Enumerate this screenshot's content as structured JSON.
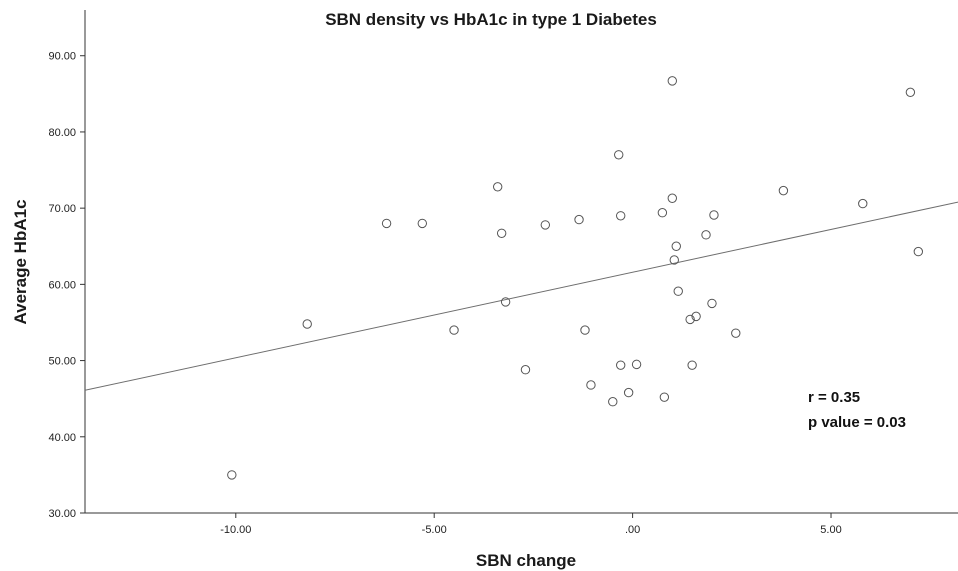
{
  "chart_data": {
    "type": "scatter",
    "title": "SBN density vs HbA1c in type 1 Diabetes",
    "xlabel": "SBN change",
    "ylabel": "Average HbA1c",
    "xlim": [
      -13.8,
      8.2
    ],
    "ylim": [
      30,
      96
    ],
    "x_ticks": [
      "-10.00",
      "-5.00",
      ".00",
      "5.00"
    ],
    "x_tick_values": [
      -10,
      -5,
      0,
      5
    ],
    "y_ticks": [
      "30.00",
      "40.00",
      "50.00",
      "60.00",
      "70.00",
      "80.00",
      "90.00"
    ],
    "y_tick_values": [
      30,
      40,
      50,
      60,
      70,
      80,
      90
    ],
    "grid": false,
    "points": [
      {
        "x": -10.1,
        "y": 35.0
      },
      {
        "x": -8.2,
        "y": 54.8
      },
      {
        "x": -6.2,
        "y": 68.0
      },
      {
        "x": -5.3,
        "y": 68.0
      },
      {
        "x": -4.5,
        "y": 54.0
      },
      {
        "x": -3.4,
        "y": 72.8
      },
      {
        "x": -3.3,
        "y": 66.7
      },
      {
        "x": -3.2,
        "y": 57.7
      },
      {
        "x": -2.7,
        "y": 48.8
      },
      {
        "x": -2.2,
        "y": 67.8
      },
      {
        "x": -1.35,
        "y": 68.5
      },
      {
        "x": -1.2,
        "y": 54.0
      },
      {
        "x": -1.05,
        "y": 46.8
      },
      {
        "x": -0.5,
        "y": 44.6
      },
      {
        "x": -0.35,
        "y": 77.0
      },
      {
        "x": -0.3,
        "y": 49.4
      },
      {
        "x": -0.3,
        "y": 69.0
      },
      {
        "x": -0.1,
        "y": 45.8
      },
      {
        "x": 0.1,
        "y": 49.5
      },
      {
        "x": 0.75,
        "y": 69.4
      },
      {
        "x": 0.8,
        "y": 45.2
      },
      {
        "x": 1.0,
        "y": 86.7
      },
      {
        "x": 1.0,
        "y": 71.3
      },
      {
        "x": 1.05,
        "y": 63.2
      },
      {
        "x": 1.1,
        "y": 65.0
      },
      {
        "x": 1.15,
        "y": 59.1
      },
      {
        "x": 1.45,
        "y": 55.4
      },
      {
        "x": 1.5,
        "y": 49.4
      },
      {
        "x": 1.6,
        "y": 55.8
      },
      {
        "x": 1.85,
        "y": 66.5
      },
      {
        "x": 2.0,
        "y": 57.5
      },
      {
        "x": 2.05,
        "y": 69.1
      },
      {
        "x": 2.6,
        "y": 53.6
      },
      {
        "x": 3.8,
        "y": 72.3
      },
      {
        "x": 5.8,
        "y": 70.6
      },
      {
        "x": 7.0,
        "y": 85.2
      },
      {
        "x": 7.2,
        "y": 64.3
      }
    ],
    "fit_line": [
      {
        "x": -13.8,
        "y": 46.1
      },
      {
        "x": 8.2,
        "y": 70.8
      }
    ],
    "annotations": [
      "r = 0.35",
      "p value = 0.03"
    ]
  }
}
